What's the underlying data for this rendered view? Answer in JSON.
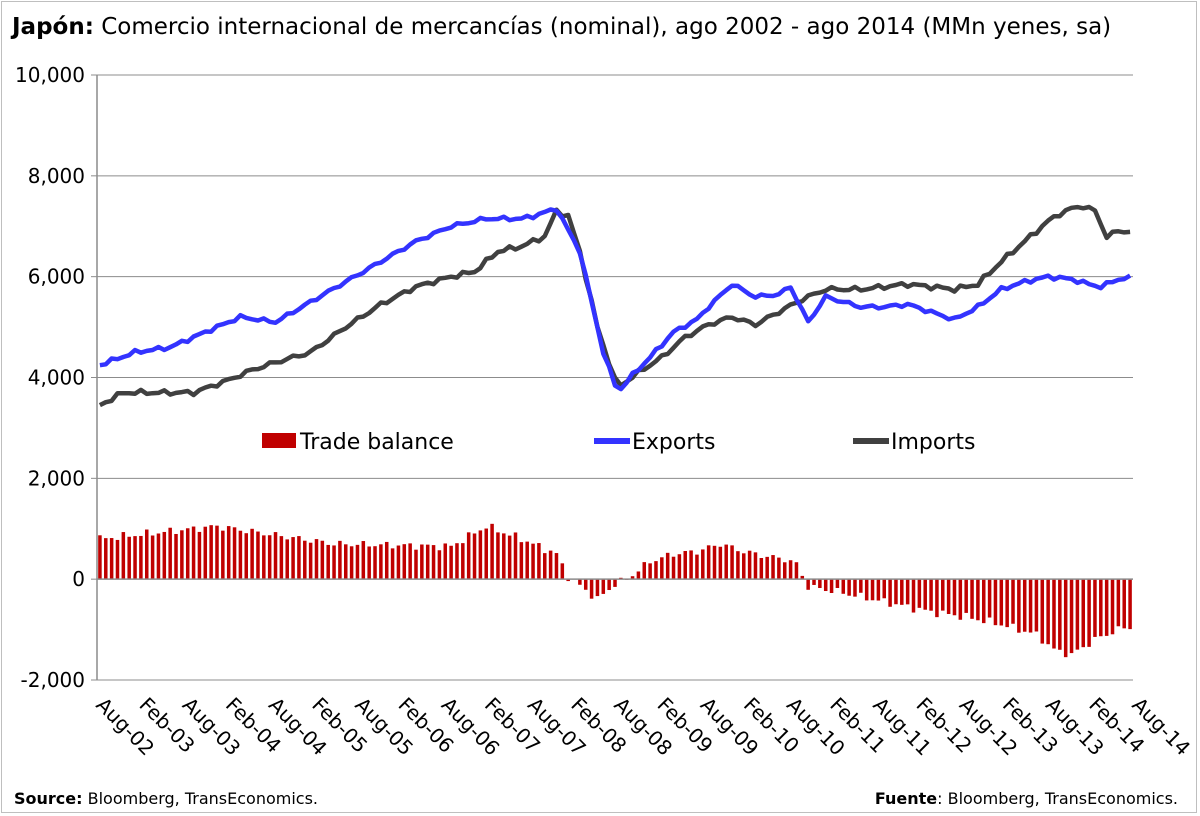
{
  "title": {
    "bold": "Japón:",
    "rest": "Comercio internacional de mercancías (nominal), ago 2002 - ago 2014 (MMn yenes, sa)"
  },
  "footer": {
    "left_bold": "Source:",
    "left_rest": "Bloomberg, TransEconomics.",
    "right_bold": "Fuente",
    "right_rest": ": Bloomberg, TransEconomics."
  },
  "colors": {
    "balance": "#c00000",
    "exports": "#3333ff",
    "imports": "#404040",
    "grid": "#8c8c8c"
  },
  "chart_data": {
    "type": "bar+line",
    "ylim": [
      -2000,
      10000
    ],
    "yticks": [
      -2000,
      0,
      2000,
      4000,
      6000,
      8000,
      10000
    ],
    "ytick_labels": [
      "-2,000",
      "0",
      "2,000",
      "4,000",
      "6,000",
      "8,000",
      "10,000"
    ],
    "xtick_labels": [
      "Aug-02",
      "Feb-03",
      "Aug-03",
      "Feb-04",
      "Aug-04",
      "Feb-05",
      "Aug-05",
      "Feb-06",
      "Aug-06",
      "Feb-07",
      "Aug-07",
      "Feb-08",
      "Aug-08",
      "Feb-09",
      "Aug-09",
      "Feb-10",
      "Aug-10",
      "Feb-11",
      "Aug-11",
      "Feb-12",
      "Aug-12",
      "Feb-13",
      "Aug-13",
      "Feb-14",
      "Aug-14"
    ],
    "grid": "horizontal",
    "legend": {
      "position": "middle",
      "entries": [
        "Trade balance",
        "Exports",
        "Imports"
      ]
    },
    "exports_anchors": [
      [
        0,
        4250
      ],
      [
        6,
        4500
      ],
      [
        12,
        4600
      ],
      [
        18,
        4900
      ],
      [
        24,
        5200
      ],
      [
        30,
        5100
      ],
      [
        36,
        5500
      ],
      [
        42,
        5900
      ],
      [
        48,
        6300
      ],
      [
        54,
        6700
      ],
      [
        60,
        7000
      ],
      [
        66,
        7150
      ],
      [
        72,
        7150
      ],
      [
        74,
        7200
      ],
      [
        78,
        7350
      ],
      [
        82,
        6500
      ],
      [
        86,
        4500
      ],
      [
        88,
        3850
      ],
      [
        89,
        3780
      ],
      [
        91,
        4050
      ],
      [
        94,
        4400
      ],
      [
        98,
        4900
      ],
      [
        102,
        5150
      ],
      [
        104,
        5400
      ],
      [
        108,
        5850
      ],
      [
        112,
        5600
      ],
      [
        116,
        5650
      ],
      [
        118,
        5800
      ],
      [
        121,
        5100
      ],
      [
        124,
        5600
      ],
      [
        130,
        5400
      ],
      [
        134,
        5400
      ],
      [
        138,
        5450
      ],
      [
        142,
        5300
      ],
      [
        146,
        5150
      ],
      [
        150,
        5400
      ],
      [
        154,
        5750
      ],
      [
        158,
        5900
      ],
      [
        162,
        6000
      ],
      [
        166,
        5950
      ],
      [
        169,
        5850
      ],
      [
        171,
        5800
      ],
      [
        174,
        5950
      ],
      [
        176,
        5980
      ]
    ],
    "imports_anchors": [
      [
        0,
        3450
      ],
      [
        4,
        3700
      ],
      [
        10,
        3700
      ],
      [
        16,
        3700
      ],
      [
        22,
        3950
      ],
      [
        26,
        4150
      ],
      [
        30,
        4300
      ],
      [
        36,
        4500
      ],
      [
        42,
        5000
      ],
      [
        48,
        5450
      ],
      [
        54,
        5800
      ],
      [
        60,
        6000
      ],
      [
        64,
        6100
      ],
      [
        68,
        6500
      ],
      [
        72,
        6600
      ],
      [
        76,
        6800
      ],
      [
        78,
        7300
      ],
      [
        80,
        7200
      ],
      [
        82,
        6500
      ],
      [
        85,
        5000
      ],
      [
        88,
        3950
      ],
      [
        89,
        3850
      ],
      [
        92,
        4100
      ],
      [
        96,
        4400
      ],
      [
        100,
        4800
      ],
      [
        104,
        5050
      ],
      [
        108,
        5200
      ],
      [
        112,
        5050
      ],
      [
        116,
        5300
      ],
      [
        120,
        5550
      ],
      [
        124,
        5750
      ],
      [
        130,
        5750
      ],
      [
        134,
        5800
      ],
      [
        138,
        5850
      ],
      [
        142,
        5800
      ],
      [
        146,
        5750
      ],
      [
        150,
        5850
      ],
      [
        154,
        6300
      ],
      [
        158,
        6700
      ],
      [
        162,
        7100
      ],
      [
        164,
        7250
      ],
      [
        166,
        7350
      ],
      [
        168,
        7400
      ],
      [
        170,
        7300
      ],
      [
        172,
        6800
      ],
      [
        174,
        6900
      ],
      [
        176,
        6900
      ]
    ],
    "balance_anchors": [
      [
        0,
        800
      ],
      [
        20,
        1050
      ],
      [
        40,
        700
      ],
      [
        60,
        650
      ],
      [
        66,
        1050
      ],
      [
        72,
        800
      ],
      [
        78,
        500
      ],
      [
        80,
        50
      ],
      [
        85,
        -400
      ],
      [
        88,
        -100
      ],
      [
        90,
        0
      ],
      [
        94,
        350
      ],
      [
        98,
        500
      ],
      [
        102,
        550
      ],
      [
        106,
        700
      ],
      [
        110,
        550
      ],
      [
        114,
        450
      ],
      [
        117,
        400
      ],
      [
        119,
        300
      ],
      [
        121,
        -150
      ],
      [
        126,
        -250
      ],
      [
        130,
        -350
      ],
      [
        136,
        -500
      ],
      [
        142,
        -650
      ],
      [
        148,
        -750
      ],
      [
        154,
        -900
      ],
      [
        160,
        -1100
      ],
      [
        163,
        -1400
      ],
      [
        166,
        -1500
      ],
      [
        170,
        -1200
      ],
      [
        174,
        -1000
      ],
      [
        176,
        -950
      ]
    ]
  }
}
